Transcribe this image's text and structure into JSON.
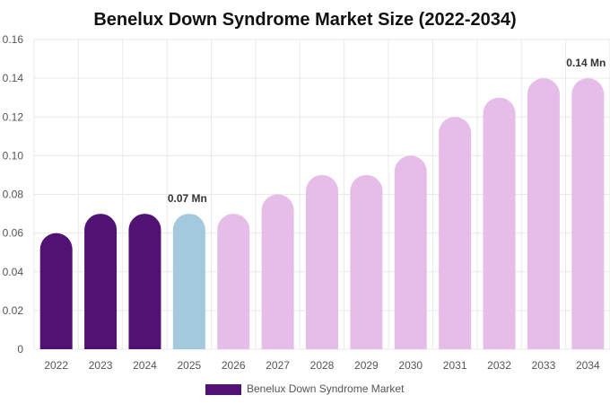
{
  "chart_data": {
    "type": "bar",
    "title": "Benelux Down Syndrome Market Size (2022-2034)",
    "xlabel": "",
    "ylabel": "",
    "categories": [
      "2022",
      "2023",
      "2024",
      "2025",
      "2026",
      "2027",
      "2028",
      "2029",
      "2030",
      "2031",
      "2032",
      "2033",
      "2034"
    ],
    "series": [
      {
        "name": "Benelux Down Syndrome Market",
        "values": [
          0.06,
          0.07,
          0.07,
          0.07,
          0.07,
          0.08,
          0.09,
          0.09,
          0.1,
          0.12,
          0.13,
          0.14,
          0.14
        ]
      }
    ],
    "ylim": [
      0,
      0.16
    ],
    "yticks": [
      "0",
      "0.02",
      "0.04",
      "0.06",
      "0.08",
      "0.10",
      "0.12",
      "0.14",
      "0.16"
    ],
    "grid": true,
    "legend_position": "bottom",
    "data_labels": [
      {
        "category": "2025",
        "text": "0.07 Mn"
      },
      {
        "category": "2034",
        "text": "0.14 Mn"
      }
    ],
    "colors": {
      "historical": "#521273",
      "current": "#a3c9df",
      "forecast": "#e6bde8",
      "legend": "#521273",
      "grid": "#e9e9e9"
    },
    "color_groups": [
      "historical",
      "historical",
      "historical",
      "current",
      "forecast",
      "forecast",
      "forecast",
      "forecast",
      "forecast",
      "forecast",
      "forecast",
      "forecast",
      "forecast"
    ]
  }
}
